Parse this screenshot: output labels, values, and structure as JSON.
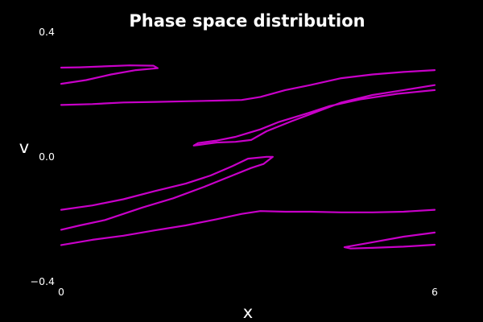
{
  "chart_data": {
    "type": "scatter",
    "title": "Phase space distribution",
    "xlabel": "x",
    "ylabel": "v",
    "xlim": [
      0,
      6
    ],
    "ylim": [
      -0.4,
      0.4
    ],
    "xticks": [
      "0",
      "6"
    ],
    "yticks": [
      "0.4",
      "0.0",
      "−0.4"
    ],
    "grid": false,
    "background": "#000000",
    "series_color": "#c800c8",
    "series": [
      {
        "points": [
          [
            0.0,
            0.164
          ],
          [
            0.5,
            0.167
          ],
          [
            1.0,
            0.172
          ],
          [
            1.5,
            0.174
          ],
          [
            2.0,
            0.176
          ],
          [
            2.5,
            0.178
          ],
          [
            2.9,
            0.18
          ],
          [
            3.2,
            0.19
          ],
          [
            3.6,
            0.212
          ],
          [
            4.0,
            0.228
          ],
          [
            4.5,
            0.25
          ],
          [
            5.0,
            0.262
          ],
          [
            5.5,
            0.27
          ],
          [
            6.0,
            0.276
          ]
        ]
      },
      {
        "points": [
          [
            6.0,
            0.228
          ],
          [
            5.5,
            0.212
          ],
          [
            5.0,
            0.196
          ],
          [
            4.5,
            0.172
          ],
          [
            4.1,
            0.142
          ],
          [
            3.7,
            0.112
          ],
          [
            3.3,
            0.08
          ],
          [
            3.05,
            0.052
          ],
          [
            2.8,
            0.046
          ],
          [
            2.5,
            0.044
          ],
          [
            2.2,
            0.036
          ],
          [
            2.13,
            0.034
          ],
          [
            2.2,
            0.042
          ],
          [
            2.5,
            0.05
          ],
          [
            2.8,
            0.062
          ],
          [
            3.0,
            0.074
          ],
          [
            3.2,
            0.086
          ],
          [
            3.5,
            0.11
          ],
          [
            3.9,
            0.134
          ],
          [
            4.3,
            0.16
          ],
          [
            4.8,
            0.182
          ],
          [
            5.4,
            0.2
          ],
          [
            6.0,
            0.212
          ]
        ]
      },
      {
        "points": [
          [
            0.0,
            0.232
          ],
          [
            0.4,
            0.244
          ],
          [
            0.8,
            0.262
          ],
          [
            1.2,
            0.276
          ],
          [
            1.55,
            0.282
          ],
          [
            1.48,
            0.29
          ],
          [
            1.1,
            0.291
          ],
          [
            0.7,
            0.288
          ],
          [
            0.3,
            0.285
          ],
          [
            0.0,
            0.284
          ]
        ]
      },
      {
        "points": [
          [
            0.0,
            -0.172
          ],
          [
            0.5,
            -0.158
          ],
          [
            1.0,
            -0.138
          ],
          [
            1.5,
            -0.112
          ],
          [
            2.0,
            -0.088
          ],
          [
            2.4,
            -0.062
          ],
          [
            2.75,
            -0.032
          ],
          [
            3.0,
            -0.008
          ],
          [
            3.3,
            -0.002
          ],
          [
            3.4,
            -0.002
          ],
          [
            3.25,
            -0.025
          ],
          [
            3.05,
            -0.038
          ],
          [
            2.75,
            -0.062
          ],
          [
            2.3,
            -0.098
          ],
          [
            1.8,
            -0.135
          ],
          [
            1.3,
            -0.165
          ],
          [
            0.7,
            -0.205
          ],
          [
            0.3,
            -0.222
          ],
          [
            0.0,
            -0.236
          ]
        ]
      },
      {
        "points": [
          [
            0.0,
            -0.285
          ],
          [
            0.5,
            -0.268
          ],
          [
            1.0,
            -0.255
          ],
          [
            1.5,
            -0.238
          ],
          [
            2.0,
            -0.222
          ],
          [
            2.5,
            -0.202
          ],
          [
            2.9,
            -0.185
          ],
          [
            3.2,
            -0.176
          ],
          [
            3.6,
            -0.178
          ],
          [
            4.0,
            -0.178
          ],
          [
            4.5,
            -0.18
          ],
          [
            5.0,
            -0.18
          ],
          [
            5.5,
            -0.178
          ],
          [
            6.0,
            -0.172
          ]
        ]
      },
      {
        "points": [
          [
            6.0,
            -0.245
          ],
          [
            5.5,
            -0.258
          ],
          [
            5.0,
            -0.276
          ],
          [
            4.55,
            -0.292
          ],
          [
            4.65,
            -0.296
          ],
          [
            5.0,
            -0.294
          ],
          [
            5.5,
            -0.29
          ],
          [
            6.0,
            -0.284
          ]
        ]
      }
    ]
  }
}
